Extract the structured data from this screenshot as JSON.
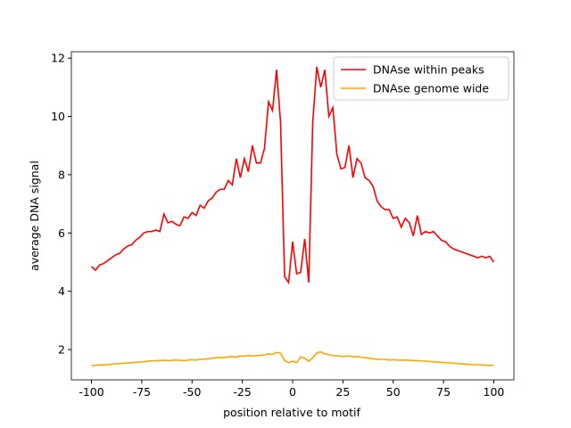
{
  "chart_data": {
    "type": "line",
    "xlabel": "position relative to motif",
    "ylabel": "average DNA signal",
    "x": [
      -100,
      -98,
      -96,
      -94,
      -92,
      -90,
      -88,
      -86,
      -84,
      -82,
      -80,
      -78,
      -76,
      -74,
      -72,
      -70,
      -68,
      -66,
      -64,
      -62,
      -60,
      -58,
      -56,
      -54,
      -52,
      -50,
      -48,
      -46,
      -44,
      -42,
      -40,
      -38,
      -36,
      -34,
      -32,
      -30,
      -28,
      -26,
      -24,
      -22,
      -20,
      -18,
      -16,
      -14,
      -12,
      -10,
      -8,
      -6,
      -4,
      -2,
      0,
      2,
      4,
      6,
      8,
      10,
      12,
      14,
      16,
      18,
      20,
      22,
      24,
      26,
      28,
      30,
      32,
      34,
      36,
      38,
      40,
      42,
      44,
      46,
      48,
      50,
      52,
      54,
      56,
      58,
      60,
      62,
      64,
      66,
      68,
      70,
      72,
      74,
      76,
      78,
      80,
      82,
      84,
      86,
      88,
      90,
      92,
      94,
      96,
      98,
      100
    ],
    "series": [
      {
        "name": "DNAse within peaks",
        "color": "#ff0000",
        "values": [
          4.85,
          4.72,
          4.9,
          4.95,
          5.05,
          5.15,
          5.25,
          5.3,
          5.45,
          5.55,
          5.6,
          5.75,
          5.85,
          6.0,
          6.05,
          6.05,
          6.1,
          6.05,
          6.65,
          6.35,
          6.4,
          6.3,
          6.25,
          6.55,
          6.5,
          6.7,
          6.6,
          6.95,
          6.85,
          7.1,
          7.2,
          7.4,
          7.5,
          7.5,
          7.8,
          7.65,
          8.55,
          7.9,
          8.55,
          8.1,
          9.0,
          8.4,
          8.4,
          8.9,
          10.5,
          10.2,
          11.6,
          9.8,
          4.5,
          4.3,
          5.7,
          4.6,
          4.65,
          5.8,
          4.3,
          9.8,
          11.7,
          11.0,
          11.6,
          10.0,
          10.3,
          8.7,
          8.2,
          8.25,
          9.0,
          7.9,
          8.55,
          8.4,
          7.9,
          7.8,
          7.6,
          7.1,
          6.9,
          6.8,
          6.8,
          6.5,
          6.55,
          6.2,
          6.5,
          6.35,
          5.9,
          6.6,
          5.95,
          6.05,
          6.0,
          6.05,
          5.9,
          5.75,
          5.7,
          5.55,
          5.45,
          5.4,
          5.35,
          5.3,
          5.25,
          5.2,
          5.15,
          5.2,
          5.15,
          5.2,
          5.0
        ]
      },
      {
        "name": "DNAse genome wide",
        "color": "#ffa500",
        "values": [
          1.45,
          1.46,
          1.47,
          1.47,
          1.48,
          1.5,
          1.51,
          1.52,
          1.53,
          1.54,
          1.55,
          1.56,
          1.57,
          1.58,
          1.6,
          1.61,
          1.62,
          1.62,
          1.63,
          1.62,
          1.63,
          1.64,
          1.63,
          1.62,
          1.64,
          1.65,
          1.64,
          1.66,
          1.67,
          1.68,
          1.7,
          1.72,
          1.73,
          1.72,
          1.75,
          1.76,
          1.74,
          1.78,
          1.77,
          1.8,
          1.78,
          1.79,
          1.8,
          1.82,
          1.85,
          1.83,
          1.9,
          1.88,
          1.62,
          1.55,
          1.6,
          1.55,
          1.75,
          1.7,
          1.6,
          1.72,
          1.88,
          1.92,
          1.85,
          1.82,
          1.8,
          1.78,
          1.77,
          1.76,
          1.78,
          1.75,
          1.76,
          1.74,
          1.72,
          1.7,
          1.68,
          1.67,
          1.66,
          1.66,
          1.64,
          1.65,
          1.64,
          1.63,
          1.64,
          1.63,
          1.62,
          1.62,
          1.61,
          1.6,
          1.59,
          1.58,
          1.57,
          1.56,
          1.55,
          1.54,
          1.53,
          1.52,
          1.51,
          1.5,
          1.49,
          1.48,
          1.48,
          1.47,
          1.46,
          1.46,
          1.45
        ]
      }
    ],
    "xlim": [
      -110,
      110
    ],
    "ylim": [
      0.96,
      12.22
    ],
    "xticks": [
      -100,
      -75,
      -50,
      -25,
      0,
      25,
      50,
      75,
      100
    ],
    "yticks": [
      2,
      4,
      6,
      8,
      10,
      12
    ],
    "legend": "upper right"
  }
}
